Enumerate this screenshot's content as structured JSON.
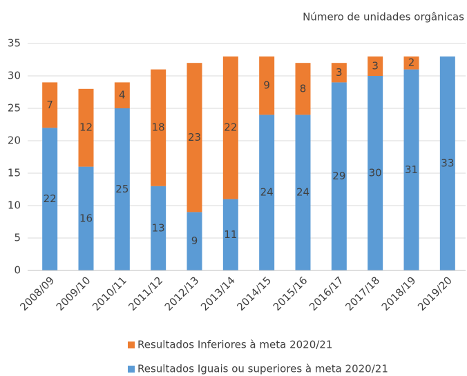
{
  "chart_data": {
    "type": "stacked_bar",
    "title": "Número de unidades orgânicas",
    "categories": [
      "2008/09",
      "2009/10",
      "2010/11",
      "2011/12",
      "2012/13",
      "2013/14",
      "2014/15",
      "2015/16",
      "2016/17",
      "2017/18",
      "2018/19",
      "2019/20"
    ],
    "series": [
      {
        "name": "Resultados Iguais ou superiores à meta 2020/21",
        "color": "#5b9bd5",
        "values": [
          22,
          16,
          25,
          13,
          9,
          11,
          24,
          24,
          29,
          30,
          31,
          33
        ]
      },
      {
        "name": "Resultados Inferiores à meta 2020/21",
        "color": "#ed7d31",
        "values": [
          7,
          12,
          4,
          18,
          23,
          22,
          9,
          8,
          3,
          3,
          2,
          null
        ]
      }
    ],
    "ylim": [
      0,
      35
    ],
    "yticks": [
      0,
      5,
      10,
      15,
      20,
      25,
      30,
      35
    ],
    "grid": true
  }
}
